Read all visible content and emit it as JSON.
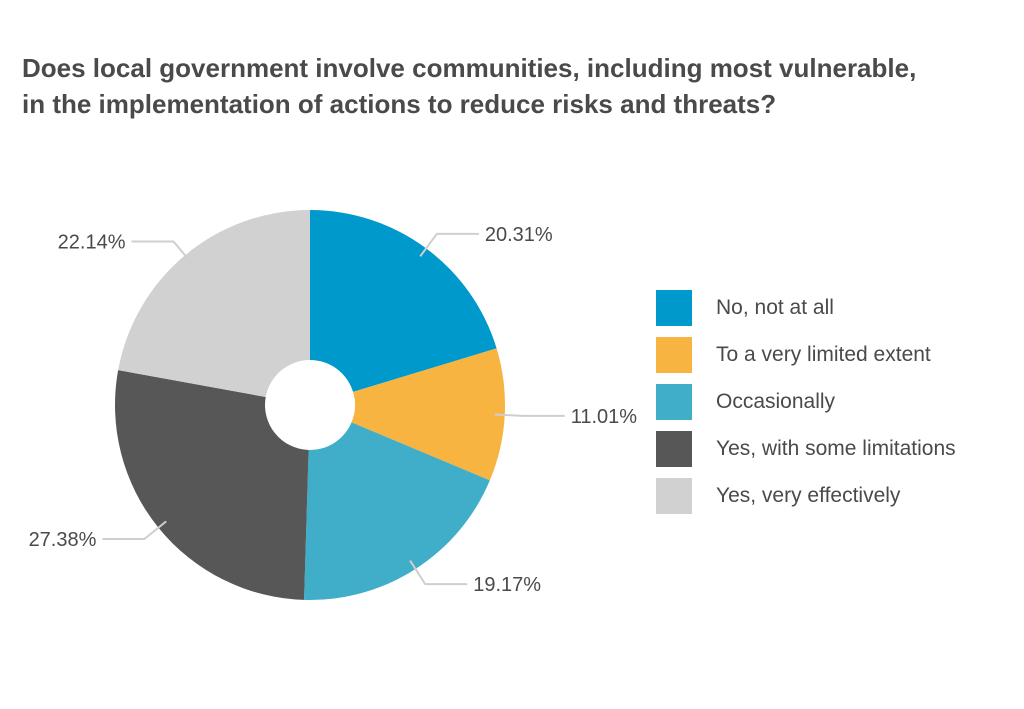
{
  "chart_data": {
    "type": "pie",
    "style": "donut",
    "title_lines": [
      "Does local government involve communities, including most vulnerable,",
      "in the implementation of actions to reduce risks and threats?"
    ],
    "categories": [
      "No, not at all",
      "To a very limited extent",
      "Occasionally",
      "Yes, with some limitations",
      "Yes, very effectively"
    ],
    "values": [
      20.31,
      11.01,
      19.17,
      27.38,
      22.14
    ],
    "value_labels": [
      "20.31%",
      "11.01%",
      "19.17%",
      "27.38%",
      "22.14%"
    ],
    "colors": [
      "#0099cc",
      "#f7b441",
      "#40adc9",
      "#575757",
      "#d1d1d1"
    ],
    "legend_position": "right",
    "start_angle": "12 o'clock, clockwise"
  }
}
